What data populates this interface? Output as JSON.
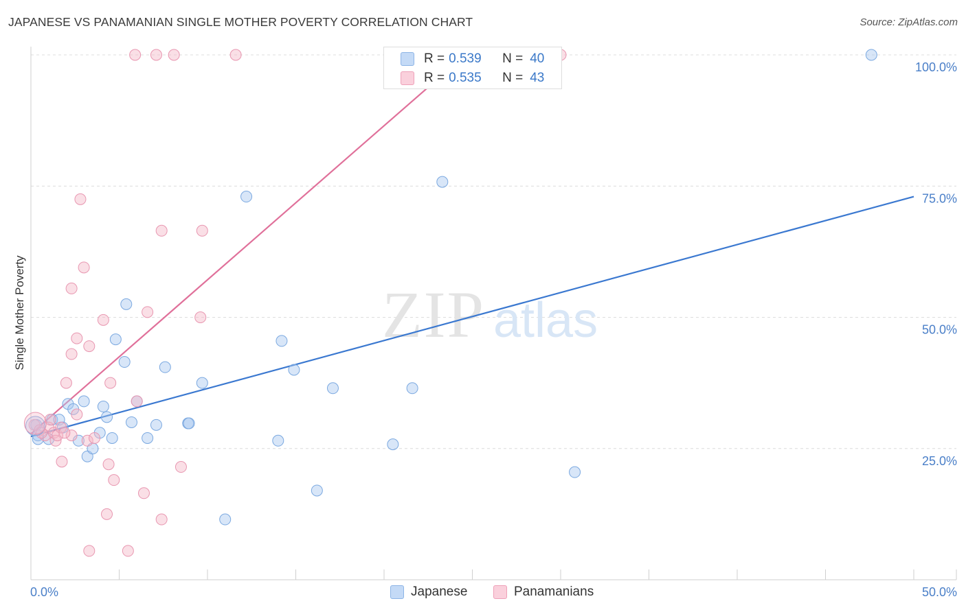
{
  "header": {
    "title": "JAPANESE VS PANAMANIAN SINGLE MOTHER POVERTY CORRELATION CHART",
    "source": "Source: ZipAtlas.com"
  },
  "watermark": {
    "zip": "ZIP",
    "atlas": "atlas"
  },
  "stats_legend": {
    "rows": [
      {
        "r_label": "R =",
        "r_value": "0.539",
        "n_label": "N =",
        "n_value": "40",
        "color": "#a8c8f0"
      },
      {
        "r_label": "R =",
        "r_value": "0.535",
        "n_label": "N =",
        "n_value": "43",
        "color": "#f5b8c8"
      }
    ]
  },
  "legend": {
    "items": [
      {
        "label": "Japanese",
        "color": "#a8c8f0"
      },
      {
        "label": "Panamanians",
        "color": "#f5b8c8"
      }
    ]
  },
  "chart_data": {
    "type": "scatter",
    "ylabel": "Single Mother Poverty",
    "xlim": [
      0,
      50
    ],
    "ylim": [
      0,
      100
    ],
    "x_tick_labels": [
      "0.0%",
      "50.0%"
    ],
    "y_ticks": [
      25,
      50,
      75,
      100
    ],
    "y_tick_labels": [
      "25.0%",
      "50.0%",
      "75.0%",
      "100.0%"
    ],
    "grid": true,
    "colors": {
      "japanese": "#3a78d0",
      "panamanians": "#e0709a",
      "tick_text": "#4a7fc8"
    },
    "series": [
      {
        "name": "Japanese",
        "trend": {
          "x": [
            0,
            50
          ],
          "y": [
            27.3,
            73.0
          ]
        },
        "points": [
          [
            0.3,
            29.5
          ],
          [
            0.4,
            27.5
          ],
          [
            0.4,
            26.8
          ],
          [
            1.0,
            26.8
          ],
          [
            1.2,
            30.5
          ],
          [
            1.6,
            30.5
          ],
          [
            1.8,
            29.0
          ],
          [
            2.1,
            33.5
          ],
          [
            2.4,
            32.5
          ],
          [
            2.7,
            26.5
          ],
          [
            3.0,
            34.0
          ],
          [
            3.2,
            23.5
          ],
          [
            3.5,
            25.0
          ],
          [
            3.9,
            28.0
          ],
          [
            4.1,
            33.0
          ],
          [
            4.3,
            31.0
          ],
          [
            4.6,
            27.0
          ],
          [
            4.8,
            45.8
          ],
          [
            5.3,
            41.5
          ],
          [
            5.4,
            52.5
          ],
          [
            5.7,
            30.0
          ],
          [
            6.0,
            34.0
          ],
          [
            6.6,
            27.0
          ],
          [
            7.1,
            29.5
          ],
          [
            7.6,
            40.5
          ],
          [
            8.9,
            29.8
          ],
          [
            8.95,
            29.8
          ],
          [
            9.7,
            37.5
          ],
          [
            11.0,
            11.5
          ],
          [
            12.2,
            73.0
          ],
          [
            14.0,
            26.5
          ],
          [
            14.2,
            45.5
          ],
          [
            14.9,
            40.0
          ],
          [
            16.2,
            17.0
          ],
          [
            17.1,
            36.5
          ],
          [
            20.5,
            25.8
          ],
          [
            21.6,
            36.5
          ],
          [
            23.3,
            75.8
          ],
          [
            30.8,
            20.5
          ],
          [
            47.6,
            100.0
          ]
        ]
      },
      {
        "name": "Panamanians",
        "trend": {
          "x": [
            0,
            24.6
          ],
          "y": [
            27.8,
            100.0
          ]
        },
        "points": [
          [
            0.2,
            29.5
          ],
          [
            0.5,
            28.5
          ],
          [
            0.8,
            27.5
          ],
          [
            1.0,
            29.0
          ],
          [
            1.1,
            30.5
          ],
          [
            1.3,
            28.0
          ],
          [
            1.4,
            26.5
          ],
          [
            1.5,
            27.5
          ],
          [
            1.7,
            29.0
          ],
          [
            1.75,
            22.5
          ],
          [
            2.0,
            37.5
          ],
          [
            2.3,
            27.5
          ],
          [
            2.3,
            43.0
          ],
          [
            2.3,
            55.5
          ],
          [
            2.6,
            46.0
          ],
          [
            2.6,
            31.5
          ],
          [
            2.8,
            72.5
          ],
          [
            3.0,
            59.5
          ],
          [
            3.2,
            26.5
          ],
          [
            3.3,
            5.5
          ],
          [
            3.3,
            44.5
          ],
          [
            3.6,
            27.0
          ],
          [
            4.1,
            49.5
          ],
          [
            4.3,
            12.5
          ],
          [
            4.4,
            22.0
          ],
          [
            4.5,
            37.5
          ],
          [
            4.7,
            19.0
          ],
          [
            5.5,
            5.5
          ],
          [
            5.9,
            100.0
          ],
          [
            6.0,
            34.0
          ],
          [
            6.4,
            16.5
          ],
          [
            6.6,
            51.0
          ],
          [
            7.1,
            100.0
          ],
          [
            7.4,
            66.5
          ],
          [
            7.4,
            11.5
          ],
          [
            8.1,
            100.0
          ],
          [
            8.5,
            21.5
          ],
          [
            9.6,
            50.0
          ],
          [
            9.7,
            66.5
          ],
          [
            11.6,
            100.0
          ],
          [
            30.0,
            100.0
          ],
          [
            0.6,
            28.0
          ],
          [
            1.9,
            28.0
          ]
        ]
      }
    ]
  }
}
